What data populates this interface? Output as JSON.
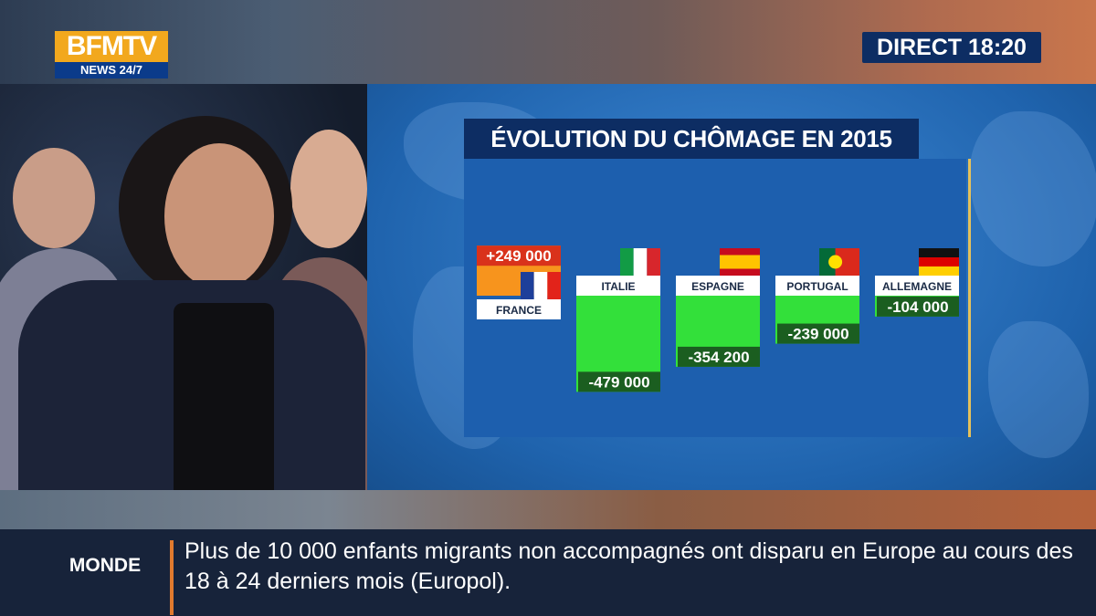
{
  "channel": {
    "logo_main": "BFMTV",
    "logo_sub": "NEWS 24/7",
    "live_label": "DIRECT 18:20"
  },
  "ticker": {
    "category": "MONDE",
    "headline": "Plus de 10 000 enfants migrants non accompagnés ont disparu en Europe au cours des 18 à 24 derniers mois (Europol)."
  },
  "chart_data": {
    "type": "bar",
    "title": "ÉVOLUTION DU CHÔMAGE EN 2015",
    "categories": [
      "FRANCE",
      "ITALIE",
      "ESPAGNE",
      "PORTUGAL",
      "ALLEMAGNE"
    ],
    "values": [
      249000,
      -479000,
      -354200,
      -239000,
      -104000
    ],
    "value_labels": [
      "+249 000",
      "-479 000",
      "-354 200",
      "-239 000",
      "-104 000"
    ],
    "colors": {
      "positive": "#f7941d",
      "negative": "#33e03a",
      "label_bg_positive": "#d9321b",
      "label_bg_negative": "#1b5e20"
    },
    "flags": [
      "france-flag-icon",
      "italy-flag-icon",
      "spain-flag-icon",
      "portugal-flag-icon",
      "germany-flag-icon"
    ]
  }
}
